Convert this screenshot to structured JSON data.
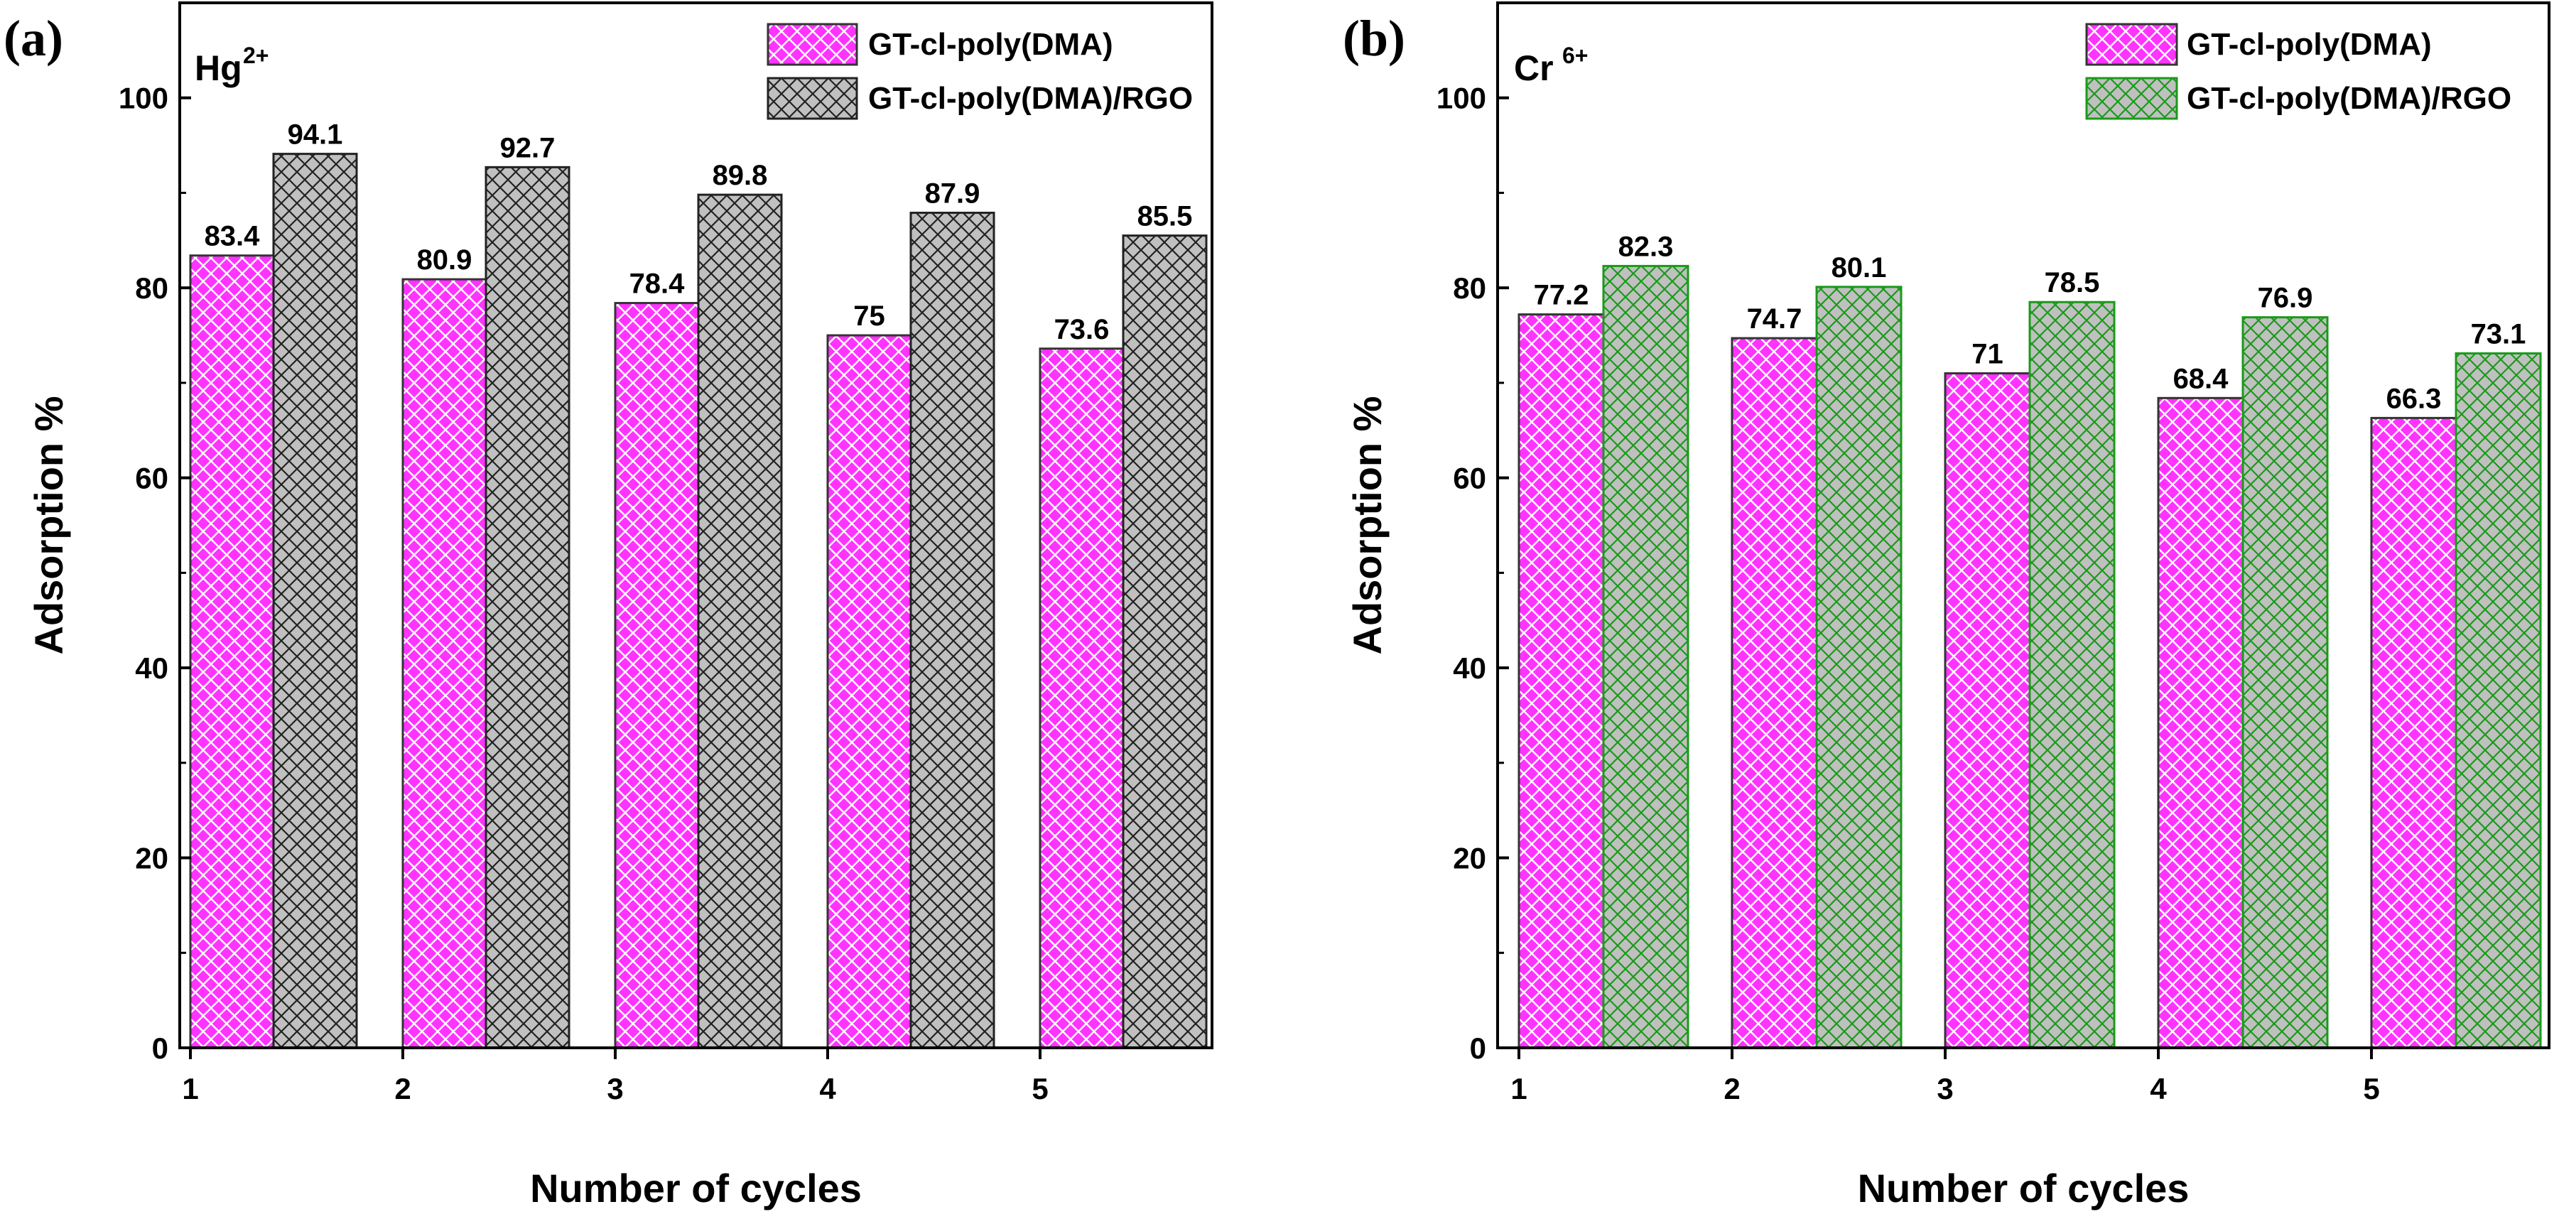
{
  "chart_data": [
    {
      "type": "bar",
      "panel_label": "(a)",
      "ion": "Hg",
      "ion_charge": "2+",
      "categories": [
        "1",
        "2",
        "3",
        "4",
        "5"
      ],
      "series": [
        {
          "name": "GT-cl-poly(DMA)",
          "values": [
            83.4,
            80.9,
            78.4,
            75,
            73.6
          ],
          "value_labels": [
            "83.4",
            "80.9",
            "78.4",
            "75",
            "73.6"
          ],
          "color": "#ff33ff",
          "hatch_color": "#ffffff",
          "edge_color": "#333333"
        },
        {
          "name": "GT-cl-poly(DMA)/RGO",
          "values": [
            94.1,
            92.7,
            89.8,
            87.9,
            85.5
          ],
          "value_labels": [
            "94.1",
            "92.7",
            "89.8",
            "87.9",
            "85.5"
          ],
          "color": "#c0c0c0",
          "hatch_color": "#222222",
          "edge_color": "#222222"
        }
      ],
      "xlabel": "Number of cycles",
      "ylabel": "Adsorption %",
      "ylim": [
        0,
        110
      ],
      "yticks": [
        "0",
        "20",
        "40",
        "60",
        "80",
        "100"
      ],
      "legend_position": "top-right"
    },
    {
      "type": "bar",
      "panel_label": "(b)",
      "ion": "Cr",
      "ion_charge": "6+",
      "categories": [
        "1",
        "2",
        "3",
        "4",
        "5"
      ],
      "series": [
        {
          "name": "GT-cl-poly(DMA)",
          "values": [
            77.2,
            74.7,
            71,
            68.4,
            66.3
          ],
          "value_labels": [
            "77.2",
            "74.7",
            "71",
            "68.4",
            "66.3"
          ],
          "color": "#ff33ff",
          "hatch_color": "#ffffff",
          "edge_color": "#333333"
        },
        {
          "name": "GT-cl-poly(DMA)/RGO",
          "values": [
            82.3,
            80.1,
            78.5,
            76.9,
            73.1
          ],
          "value_labels": [
            "82.3",
            "80.1",
            "78.5",
            "76.9",
            "73.1"
          ],
          "color": "#c0c0c0",
          "hatch_color": "#1a9a1a",
          "edge_color": "#1a9a1a"
        }
      ],
      "xlabel": "Number of cycles",
      "ylabel": "Adsorption %",
      "ylim": [
        0,
        110
      ],
      "yticks": [
        "0",
        "20",
        "40",
        "60",
        "80",
        "100"
      ],
      "legend_position": "top-right"
    }
  ]
}
